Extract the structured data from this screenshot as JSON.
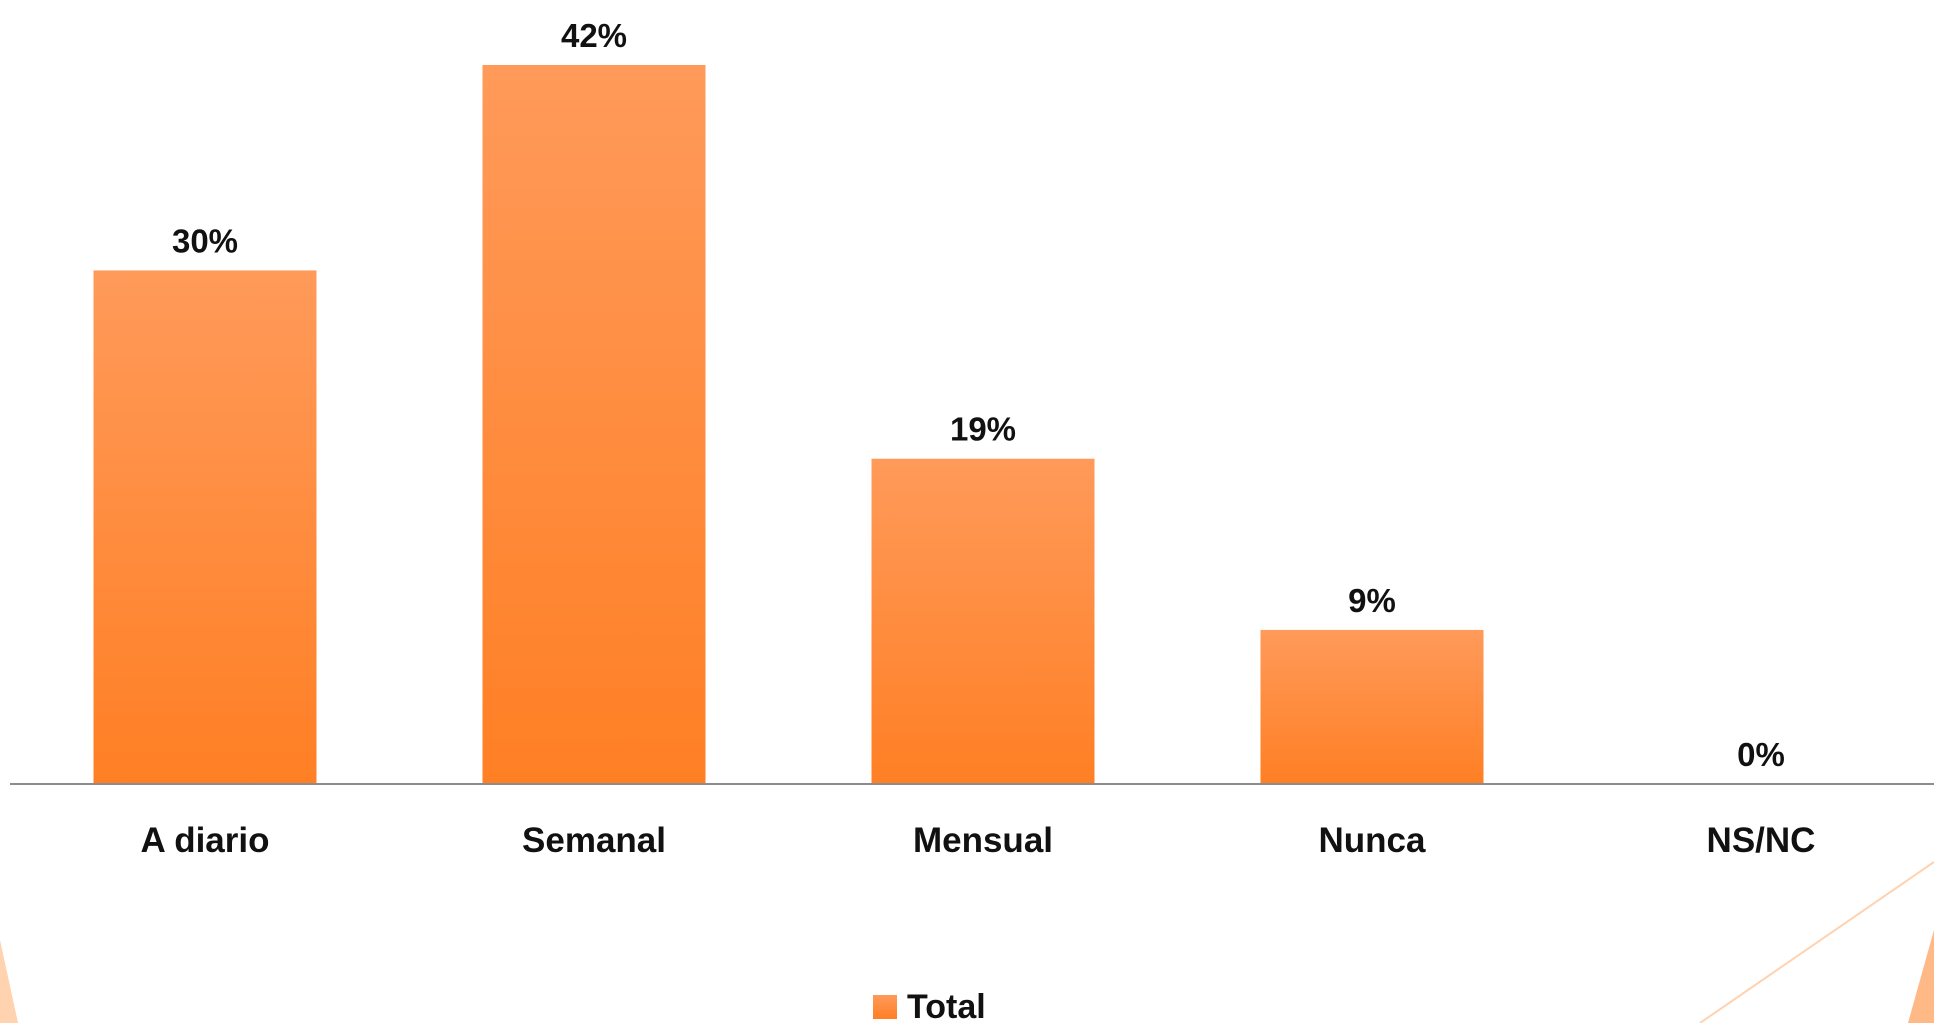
{
  "chart_data": {
    "type": "bar",
    "categories": [
      "A diario",
      "Semanal",
      "Mensual",
      "Nunca",
      "NS/NC"
    ],
    "series": [
      {
        "name": "Total",
        "values": [
          30,
          42,
          19,
          9,
          0
        ]
      }
    ],
    "data_labels": [
      "30%",
      "42%",
      "19%",
      "9%",
      "0%"
    ],
    "ylim": [
      0,
      42
    ],
    "grid": false,
    "legend_position": "bottom-center",
    "colors": {
      "bar_top": "#FF9A5A",
      "bar_bottom": "#FF7F24",
      "axis": "#8C8C8C",
      "decoration": "#FFD2B0",
      "decoration_accent": "#FFA76A"
    }
  }
}
